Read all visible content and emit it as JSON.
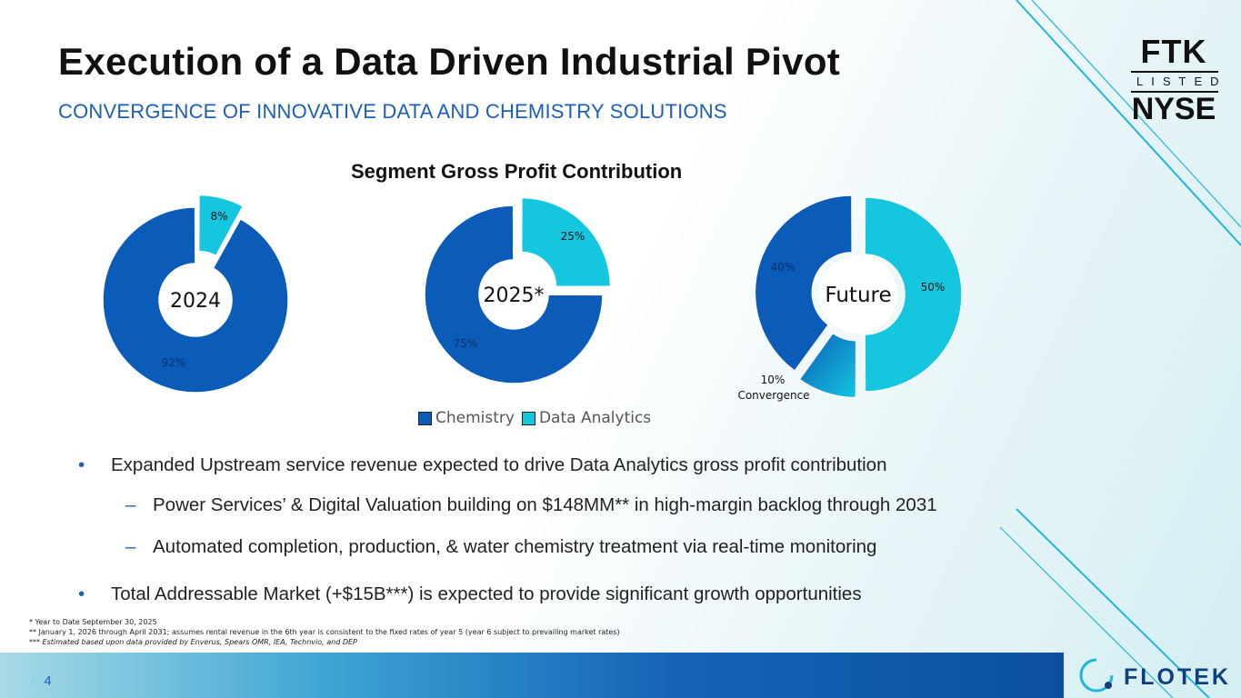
{
  "header": {
    "title": "Execution of a Data Driven Industrial Pivot",
    "subtitle": "CONVERGENCE OF INNOVATIVE DATA AND CHEMISTRY SOLUTIONS"
  },
  "logo": {
    "ftk": "FTK",
    "listed": "LISTED",
    "nyse": "NYSE"
  },
  "colors": {
    "chemistry": "#0a5cb8",
    "data_analytics": "#15c6df",
    "accent": "#1d5fb4"
  },
  "chart_data": {
    "type": "pie",
    "title": "Segment Gross Profit Contribution",
    "legend": [
      "Chemistry",
      "Data Analytics"
    ],
    "charts": [
      {
        "center_label": "2024",
        "slices": [
          {
            "name": "Data Analytics",
            "value": 8,
            "label": "8%"
          },
          {
            "name": "Chemistry",
            "value": 92,
            "label": "92%"
          }
        ]
      },
      {
        "center_label": "2025*",
        "slices": [
          {
            "name": "Data Analytics",
            "value": 25,
            "label": "25%"
          },
          {
            "name": "Chemistry",
            "value": 75,
            "label": "75%"
          }
        ]
      },
      {
        "center_label": "Future",
        "slices": [
          {
            "name": "Data Analytics",
            "value": 50,
            "label": "50%"
          },
          {
            "name": "Convergence",
            "value": 10,
            "label": "10%",
            "sublabel": "Convergence"
          },
          {
            "name": "Chemistry",
            "value": 40,
            "label": "40%"
          }
        ]
      }
    ]
  },
  "bullets": [
    {
      "level": 1,
      "marker": "•",
      "text": "Expanded Upstream service revenue expected to drive Data Analytics gross profit contribution"
    },
    {
      "level": 2,
      "marker": "–",
      "text": "Power Services’ & Digital Valuation building on $148MM** in high-margin backlog through 2031"
    },
    {
      "level": 2,
      "marker": "–",
      "text": "Automated completion, production, & water chemistry treatment via real-time monitoring"
    },
    {
      "level": 1,
      "marker": "•",
      "text": "Total Addressable Market (+$15B***) is expected to provide significant growth opportunities"
    }
  ],
  "footnotes": [
    "*    Year to Date September 30, 2025",
    "** January 1, 2026 through April 2031; assumes rental revenue in the 6th year is consistent to the fixed rates of year 5 (year 6  subject to prevailing market rates)",
    "*** Estimated based upon data provided by Enverus, Spears OMR, IEA, Technvio, and DEP"
  ],
  "footer": {
    "page_prefix": "//",
    "page_number": "4",
    "company": "FLOTEK"
  }
}
